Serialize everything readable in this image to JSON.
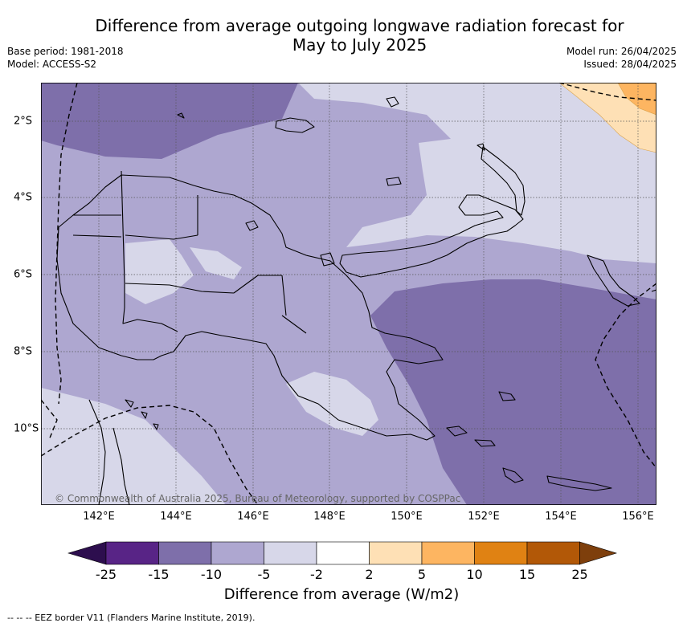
{
  "title_line1": "Difference from average outgoing longwave radiation forecast for",
  "title_line2": "May to July 2025",
  "meta_left": {
    "base_period": "Base period: 1981-2018",
    "model": "Model: ACCESS-S2"
  },
  "meta_right": {
    "model_run": "Model run: 26/04/2025",
    "issued": "Issued: 28/04/2025"
  },
  "copyright": "© Commonwealth of Australia 2025, Bureau of Meteorology, supported by COSPPac",
  "lon_labels": [
    "142°E",
    "144°E",
    "146°E",
    "148°E",
    "150°E",
    "152°E",
    "154°E",
    "156°E"
  ],
  "lat_labels": [
    "2°S",
    "4°S",
    "6°S",
    "8°S",
    "10°S"
  ],
  "colorbar": {
    "ticks": [
      "-25",
      "-15",
      "-10",
      "-5",
      "-2",
      "2",
      "5",
      "10",
      "15",
      "25"
    ],
    "colors": [
      "#2d0e4e",
      "#582486",
      "#7e6faa",
      "#aea7d0",
      "#d7d7e9",
      "#ffffff",
      "#fee0b5",
      "#fdb561",
      "#e08213",
      "#b25807",
      "#7e3f0c"
    ],
    "label": "Difference from average (W/m2)"
  },
  "footnote": "-- -- -- EEZ border V11 (Flanders Marine Institute, 2019)."
}
